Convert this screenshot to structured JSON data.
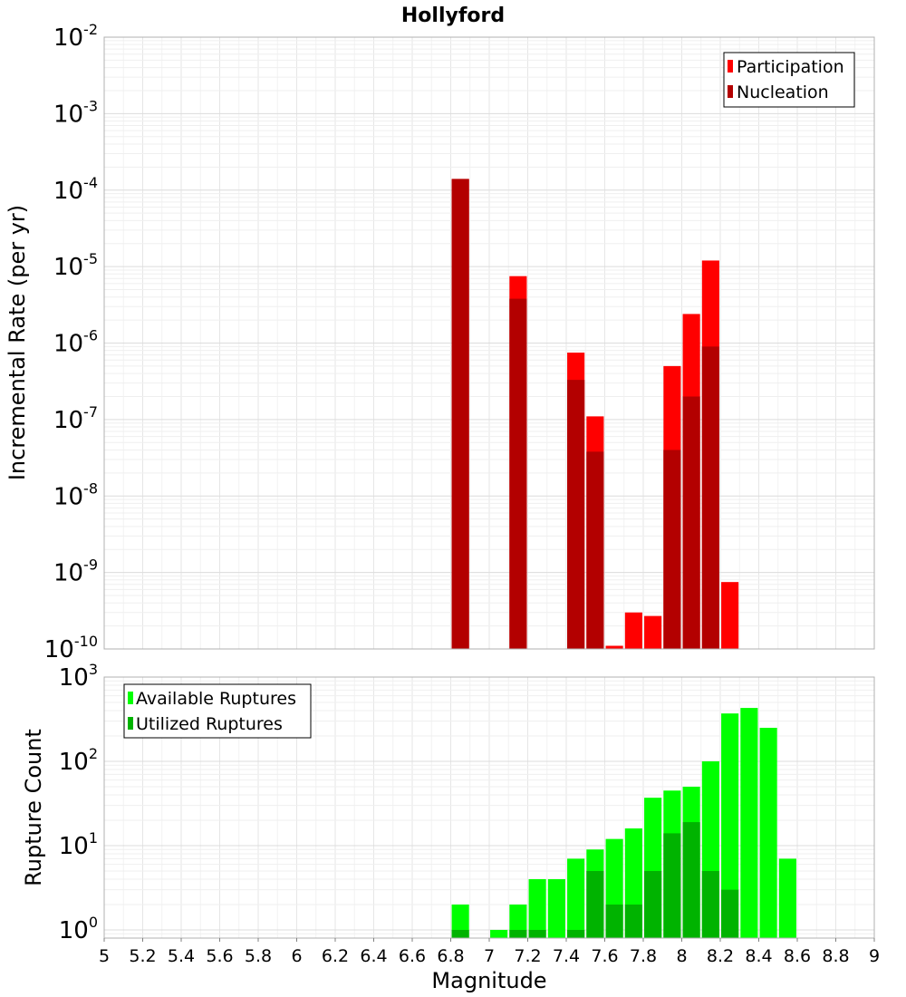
{
  "chart_data": [
    {
      "type": "bar",
      "title": "Hollyford",
      "xlabel": "",
      "ylabel": "Incremental Rate (per yr)",
      "yscale": "log",
      "xlim": [
        5,
        9
      ],
      "ylim": [
        1e-10,
        0.01
      ],
      "ytick_exponents": [
        -10,
        -9,
        -8,
        -7,
        -6,
        -5,
        -4,
        -3,
        -2
      ],
      "grid": true,
      "legend_position": "top-right",
      "bar_width": 0.09,
      "series": [
        {
          "name": "Participation",
          "color": "#ff0000",
          "points": [
            {
              "x": 6.85,
              "y": 0.00014
            },
            {
              "x": 7.15,
              "y": 7.5e-06
            },
            {
              "x": 7.45,
              "y": 7.5e-07
            },
            {
              "x": 7.55,
              "y": 1.1e-07
            },
            {
              "x": 7.65,
              "y": 1.1e-10
            },
            {
              "x": 7.75,
              "y": 3e-10
            },
            {
              "x": 7.85,
              "y": 2.7e-10
            },
            {
              "x": 7.95,
              "y": 5e-07
            },
            {
              "x": 8.05,
              "y": 2.4e-06
            },
            {
              "x": 8.15,
              "y": 1.2e-05
            },
            {
              "x": 8.25,
              "y": 7.5e-10
            }
          ]
        },
        {
          "name": "Nucleation",
          "color": "#b30000",
          "points": [
            {
              "x": 6.85,
              "y": 0.00014
            },
            {
              "x": 7.15,
              "y": 3.8e-06
            },
            {
              "x": 7.45,
              "y": 3.3e-07
            },
            {
              "x": 7.55,
              "y": 3.8e-08
            },
            {
              "x": 7.95,
              "y": 4e-08
            },
            {
              "x": 8.05,
              "y": 2e-07
            },
            {
              "x": 8.15,
              "y": 9e-07
            }
          ]
        }
      ]
    },
    {
      "type": "bar",
      "title": "",
      "xlabel": "Magnitude",
      "ylabel": "Rupture Count",
      "yscale": "log",
      "xlim": [
        5,
        9
      ],
      "ylim": [
        0.8,
        1000
      ],
      "ytick_exponents": [
        0,
        1,
        2,
        3
      ],
      "xticks": [
        "5",
        "5.2",
        "5.4",
        "5.6",
        "5.8",
        "6",
        "6.2",
        "6.4",
        "6.6",
        "6.8",
        "7",
        "7.2",
        "7.4",
        "7.6",
        "7.8",
        "8",
        "8.2",
        "8.4",
        "8.6",
        "8.8",
        "9"
      ],
      "grid": true,
      "legend_position": "top-left",
      "bar_width": 0.09,
      "series": [
        {
          "name": "Available Ruptures",
          "color": "#00ff00",
          "points": [
            {
              "x": 6.85,
              "y": 2
            },
            {
              "x": 7.05,
              "y": 1
            },
            {
              "x": 7.15,
              "y": 2
            },
            {
              "x": 7.25,
              "y": 4
            },
            {
              "x": 7.35,
              "y": 4
            },
            {
              "x": 7.45,
              "y": 7
            },
            {
              "x": 7.55,
              "y": 9
            },
            {
              "x": 7.65,
              "y": 12
            },
            {
              "x": 7.75,
              "y": 16
            },
            {
              "x": 7.85,
              "y": 37
            },
            {
              "x": 7.95,
              "y": 45
            },
            {
              "x": 8.05,
              "y": 50
            },
            {
              "x": 8.15,
              "y": 100
            },
            {
              "x": 8.25,
              "y": 370
            },
            {
              "x": 8.35,
              "y": 430
            },
            {
              "x": 8.45,
              "y": 250
            },
            {
              "x": 8.55,
              "y": 7
            }
          ]
        },
        {
          "name": "Utilized Ruptures",
          "color": "#00b300",
          "points": [
            {
              "x": 6.85,
              "y": 1
            },
            {
              "x": 7.15,
              "y": 1
            },
            {
              "x": 7.25,
              "y": 1
            },
            {
              "x": 7.45,
              "y": 1
            },
            {
              "x": 7.55,
              "y": 5
            },
            {
              "x": 7.65,
              "y": 2
            },
            {
              "x": 7.75,
              "y": 2
            },
            {
              "x": 7.85,
              "y": 5
            },
            {
              "x": 7.95,
              "y": 14
            },
            {
              "x": 8.05,
              "y": 19
            },
            {
              "x": 8.15,
              "y": 5
            },
            {
              "x": 8.25,
              "y": 3
            }
          ]
        }
      ]
    }
  ]
}
